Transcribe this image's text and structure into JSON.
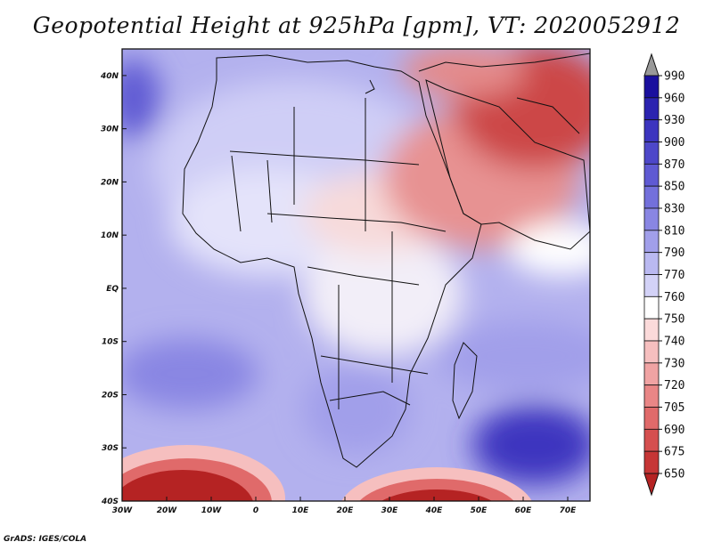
{
  "title": "Geopotential Height at 925hPa [gpm], VT: 2020052912",
  "credit": "GrADS: IGES/COLA",
  "map": {
    "x_ticks": [
      "30W",
      "20W",
      "10W",
      "0",
      "10E",
      "20E",
      "30E",
      "40E",
      "50E",
      "60E",
      "70E"
    ],
    "y_ticks": [
      "40N",
      "30N",
      "20N",
      "10N",
      "EQ",
      "10S",
      "20S",
      "30S",
      "40S"
    ],
    "lon_range": [
      -30,
      75
    ],
    "lat_range": [
      -40,
      45
    ]
  },
  "colorbar": {
    "levels": [
      "990",
      "960",
      "930",
      "900",
      "870",
      "850",
      "830",
      "810",
      "790",
      "770",
      "760",
      "750",
      "740",
      "730",
      "720",
      "705",
      "690",
      "675",
      "650"
    ],
    "colors": [
      "#999999",
      "#1a0f9e",
      "#2b23b0",
      "#3c35bf",
      "#4d47c9",
      "#5f5ad3",
      "#7370db",
      "#8986e3",
      "#a19fea",
      "#bab9f1",
      "#d3d2f7",
      "#ffffff",
      "#fbdada",
      "#f6bfbf",
      "#f0a3a3",
      "#e98686",
      "#e06a6a",
      "#d54f4f",
      "#c63636",
      "#b52323"
    ]
  }
}
